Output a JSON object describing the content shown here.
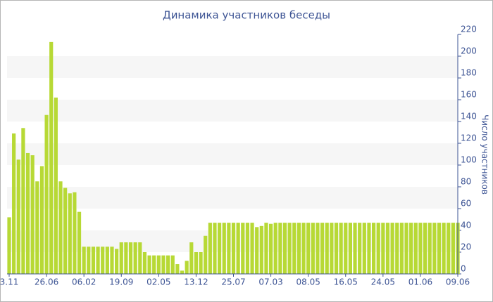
{
  "chart_data": {
    "type": "bar",
    "title": "Динамика участников беседы",
    "y_label": "Число участников",
    "categories": [
      "3.11",
      null,
      null,
      null,
      null,
      null,
      null,
      null,
      "26.06",
      null,
      null,
      null,
      null,
      null,
      null,
      null,
      "06.02",
      null,
      null,
      null,
      null,
      null,
      null,
      null,
      "19.09",
      null,
      null,
      null,
      null,
      null,
      null,
      null,
      "02.05",
      null,
      null,
      null,
      null,
      null,
      null,
      null,
      "13.12",
      null,
      null,
      null,
      null,
      null,
      null,
      null,
      "25.07",
      null,
      null,
      null,
      null,
      null,
      null,
      null,
      "07.03",
      null,
      null,
      null,
      null,
      null,
      null,
      null,
      "08.05",
      null,
      null,
      null,
      null,
      null,
      null,
      null,
      "16.05",
      null,
      null,
      null,
      null,
      null,
      null,
      null,
      "24.05",
      null,
      null,
      null,
      null,
      null,
      null,
      null,
      "01.06",
      null,
      null,
      null,
      null,
      null,
      null,
      null,
      "09.06"
    ],
    "values": [
      52,
      129,
      105,
      134,
      111,
      109,
      85,
      99,
      146,
      213,
      162,
      85,
      79,
      74,
      75,
      57,
      25,
      25,
      25,
      25,
      25,
      25,
      25,
      23,
      29,
      29,
      29,
      29,
      29,
      20,
      17,
      17,
      17,
      17,
      17,
      17,
      9,
      3,
      12,
      29,
      20,
      20,
      35,
      47,
      47,
      47,
      47,
      47,
      47,
      47,
      47,
      47,
      47,
      43,
      44,
      47,
      46,
      47,
      47,
      47,
      47,
      47,
      47,
      47,
      47,
      47,
      47,
      47,
      47,
      47,
      47,
      47,
      47,
      47,
      47,
      47,
      47,
      47,
      47,
      47,
      47,
      47,
      47,
      47,
      47,
      47,
      47,
      47,
      47,
      47,
      47,
      47,
      47,
      47,
      47,
      47,
      47
    ],
    "color": "#b7d935",
    "ylim": [
      0,
      220
    ],
    "yticks": [
      0,
      20,
      40,
      60,
      80,
      100,
      120,
      140,
      160,
      180,
      200,
      220
    ],
    "grid": true
  }
}
